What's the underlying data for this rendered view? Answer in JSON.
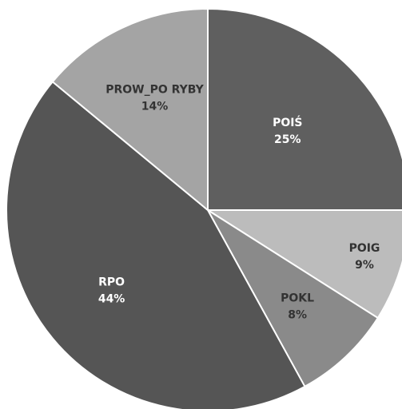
{
  "chart_data": {
    "type": "pie",
    "slices": [
      {
        "label": "POIŚ",
        "value": 25,
        "percent_label": "25%",
        "color": "#5f5f5f",
        "text_color": "#ffffff"
      },
      {
        "label": "POIG",
        "value": 9,
        "percent_label": "9%",
        "color": "#bcbcbc",
        "text_color": "#333333"
      },
      {
        "label": "POKL",
        "value": 8,
        "percent_label": "8%",
        "color": "#8a8a8a",
        "text_color": "#333333"
      },
      {
        "label": "RPO",
        "value": 44,
        "percent_label": "44%",
        "color": "#555555",
        "text_color": "#ffffff"
      },
      {
        "label": "PROW_PO RYBY",
        "value": 14,
        "percent_label": "14%",
        "color": "#a4a4a4",
        "text_color": "#333333"
      }
    ],
    "start": "12 o'clock",
    "direction": "clockwise",
    "legend": "none"
  }
}
